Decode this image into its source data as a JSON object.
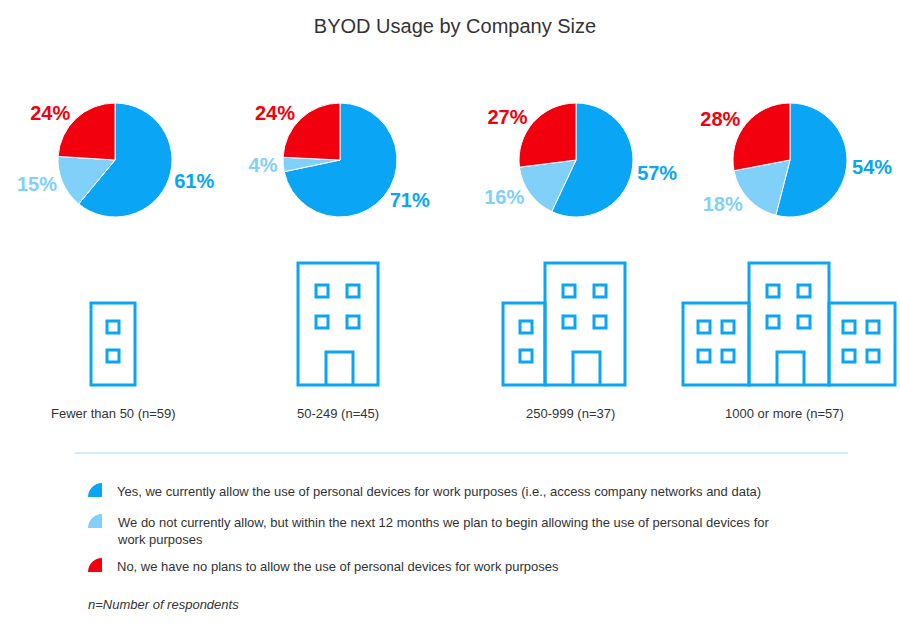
{
  "chart_data": {
    "type": "pie",
    "title": "BYOD Usage by Company Size",
    "categories": [
      "Fewer than 50 (n=59)",
      "50-249 (n=45)",
      "250-999 (n=37)",
      "1000 or more (n=57)"
    ],
    "series": [
      {
        "name": "Yes, we currently allow the use of personal devices for work purposes (i.e., access company networks and data)",
        "color": "#0aa5f4",
        "values": [
          61,
          71,
          57,
          54
        ],
        "value_labels": [
          "61%",
          "71%",
          "57%",
          "54%"
        ]
      },
      {
        "name": "We do not currently allow, but within the next 12 months we plan to begin allowing the use of personal devices for work purposes",
        "color": "#80d0fa",
        "values": [
          15,
          4,
          16,
          18
        ],
        "value_labels": [
          "15%",
          "4%",
          "16%",
          "18%"
        ]
      },
      {
        "name": "No, we have no plans to allow the use of personal devices for work purposes",
        "color": "#f2000d",
        "values": [
          24,
          24,
          27,
          28
        ],
        "value_labels": [
          "24%",
          "24%",
          "27%",
          "28%"
        ]
      }
    ],
    "data_labels": true,
    "annotations": [
      "n=Number of respondents"
    ]
  }
}
